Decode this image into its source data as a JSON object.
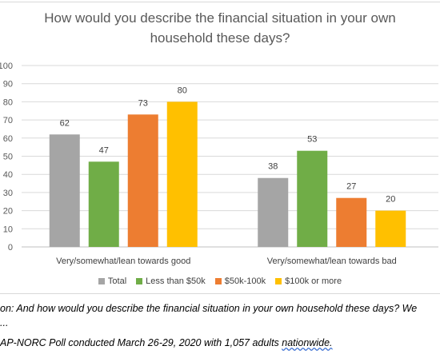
{
  "chart_data": {
    "type": "bar",
    "title": "How would you describe the financial situation in your own household these days?",
    "title_lines": [
      "How would you describe the financial situation in your own",
      "household these days?"
    ],
    "categories": [
      "Very/somewhat/lean towards good",
      "Very/somewhat/lean towards bad"
    ],
    "series": [
      {
        "name": "Total",
        "color": "#a5a5a5",
        "values": [
          62,
          38
        ]
      },
      {
        "name": "Less than $50k",
        "color": "#70ad47",
        "values": [
          47,
          53
        ]
      },
      {
        "name": "$50k-100k",
        "color": "#ed7d31",
        "values": [
          73,
          27
        ]
      },
      {
        "name": "$100k or more",
        "color": "#ffc000",
        "values": [
          80,
          20
        ]
      }
    ],
    "y_ticks": [
      "0",
      "10",
      "20",
      "30",
      "40",
      "50",
      "60",
      "70",
      "80",
      "90",
      "100"
    ],
    "ylim": [
      0,
      100
    ],
    "grid": true,
    "legend_position": "bottom",
    "xlabel": "",
    "ylabel": ""
  },
  "notes": {
    "question": "on: And how would you describe the financial situation in your own household these days? We",
    "question_cont": "...",
    "source_main": "AP-NORC Poll conducted March 26-29, 2020 with 1,057 adults ",
    "source_underlined": "nationwide."
  }
}
